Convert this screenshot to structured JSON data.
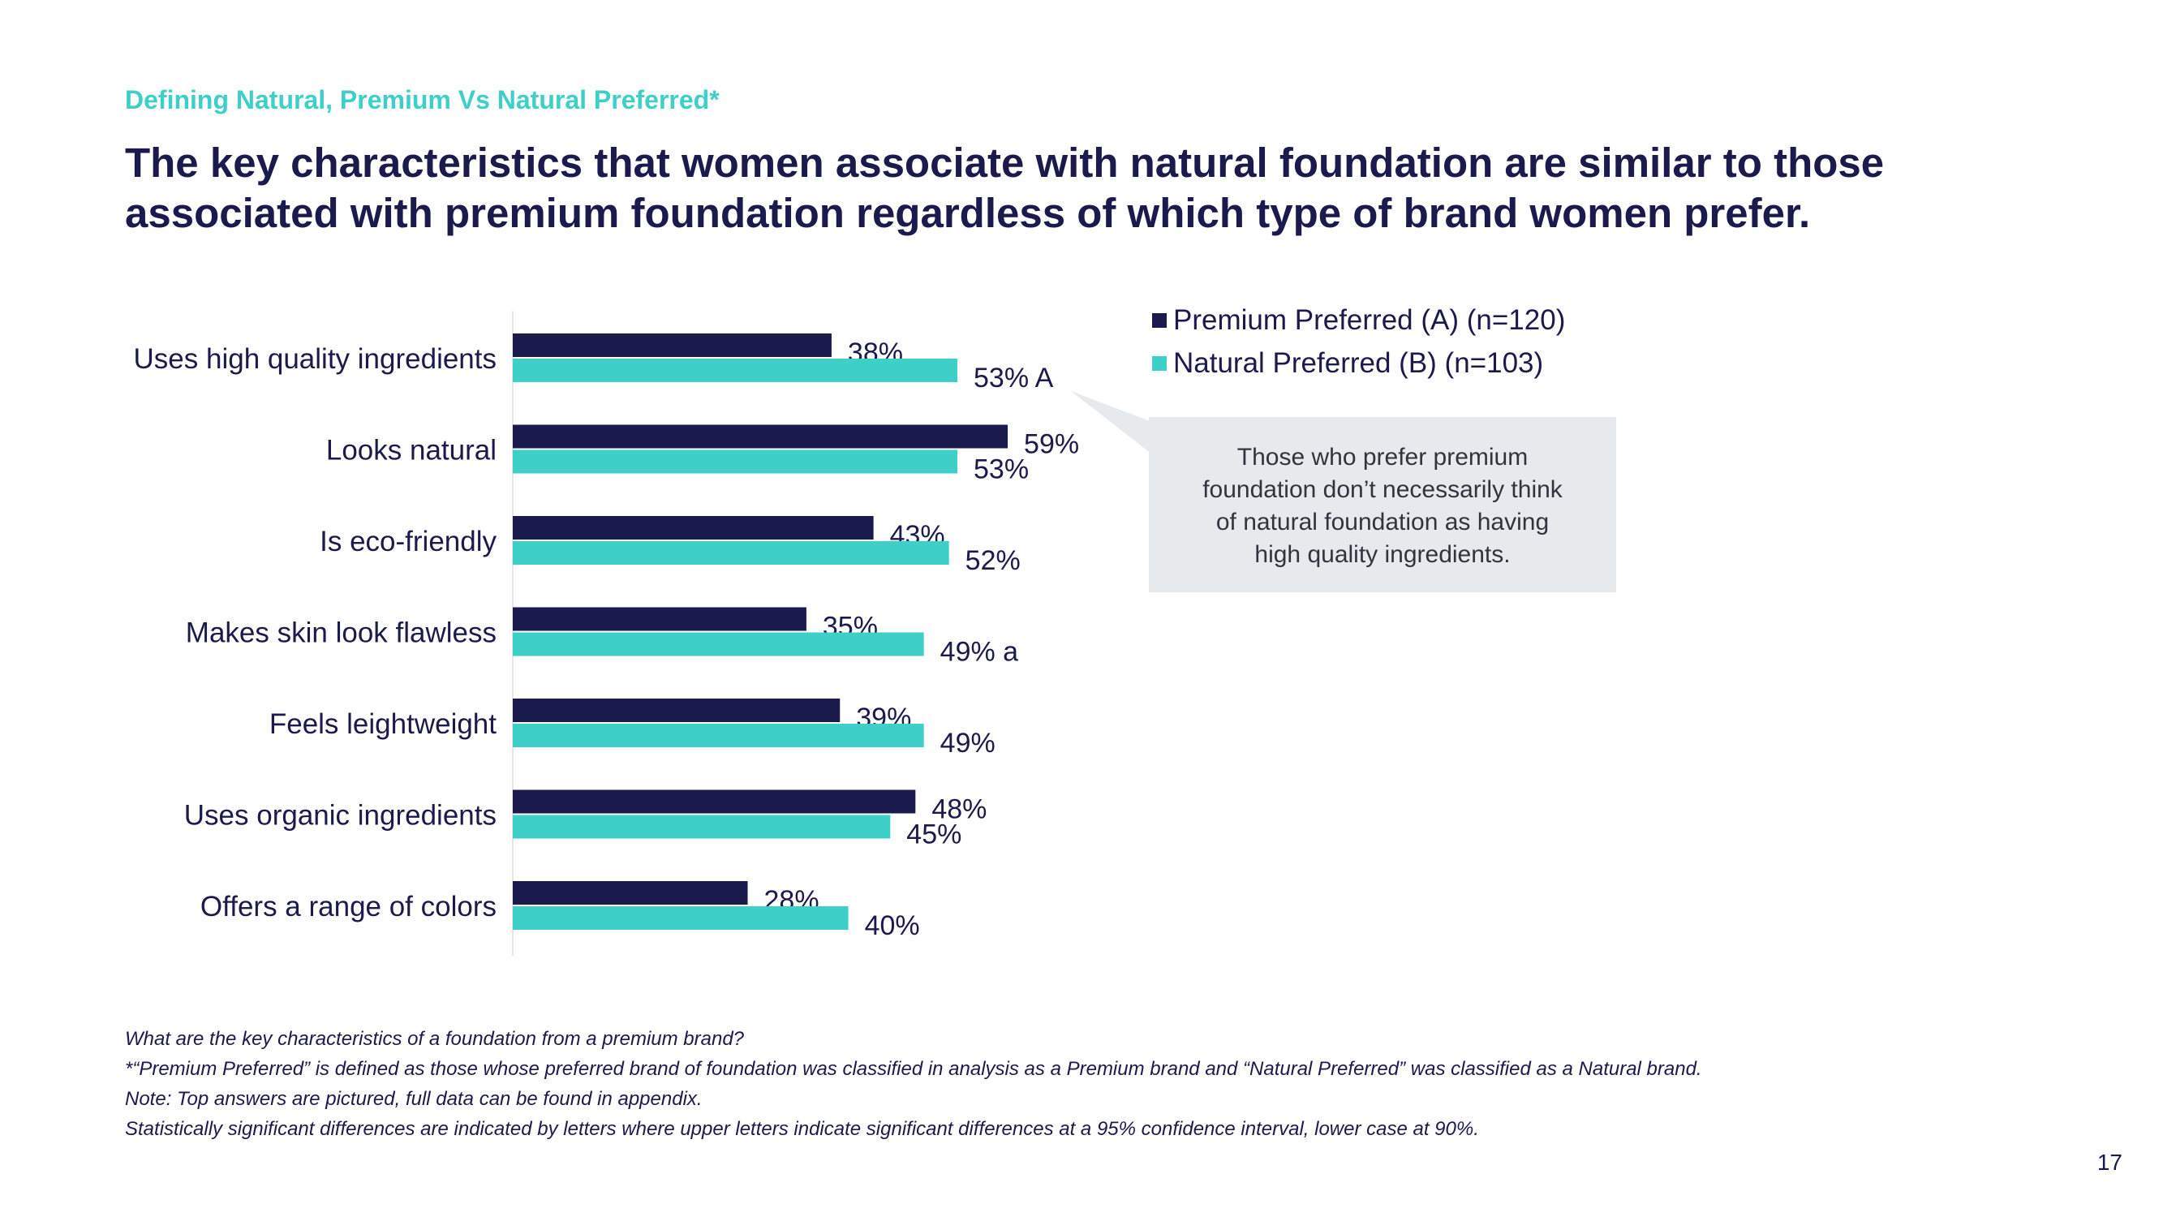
{
  "header": {
    "eyebrow": "Defining Natural, Premium Vs Natural Preferred*",
    "headline": "The key characteristics that women associate with natural foundation are similar to those associated with premium foundation regardless of which type of brand women prefer."
  },
  "colors": {
    "premium": "#1b1a4c",
    "natural": "#3ecfc9",
    "accent": "#3ecfc9"
  },
  "chart_data": {
    "type": "bar",
    "orientation": "horizontal",
    "categories": [
      "Uses high quality ingredients",
      "Looks natural",
      "Is eco-friendly",
      "Makes skin look flawless",
      "Feels leightweight",
      "Uses organic ingredients",
      "Offers a range of colors"
    ],
    "series": [
      {
        "name": "Premium Preferred (A) (n=120)",
        "values": [
          38,
          59,
          43,
          35,
          39,
          48,
          28
        ],
        "labels": [
          "38%",
          "59%",
          "43%",
          "35%",
          "39%",
          "48%",
          "28%"
        ]
      },
      {
        "name": "Natural Preferred (B) (n=103)",
        "values": [
          53,
          53,
          52,
          49,
          49,
          45,
          40
        ],
        "labels": [
          "53% A",
          "53%",
          "52%",
          "49% a",
          "49%",
          "45%",
          "40%"
        ]
      }
    ],
    "xlim": [
      0,
      100
    ],
    "grid": false,
    "legend_position": "top-right"
  },
  "callout": {
    "lines": [
      "Those who prefer premium",
      "foundation don’t necessarily think",
      "of natural foundation as having",
      "high quality ingredients."
    ]
  },
  "footnotes": [
    "What are the key characteristics of a foundation from a premium brand?",
    "*“Premium Preferred” is defined as those whose preferred brand of foundation was classified in analysis as a Premium brand and “Natural Preferred” was classified as a Natural brand.",
    "Note: Top answers are pictured, full data can be found in appendix.",
    "Statistically significant differences are indicated by letters where upper letters indicate significant differences at a 95% confidence interval, lower case at 90%."
  ],
  "page_number": "17"
}
